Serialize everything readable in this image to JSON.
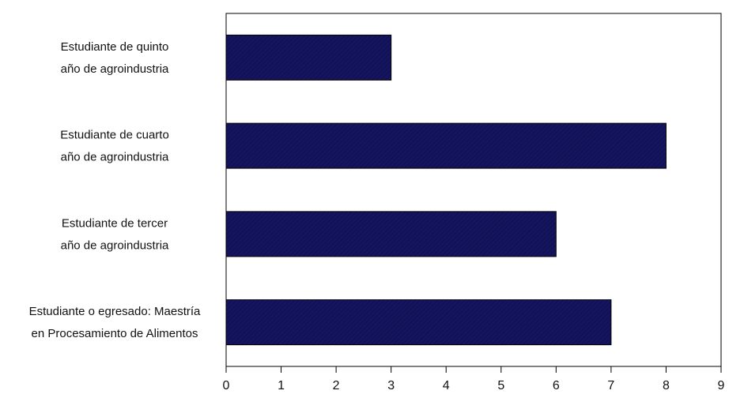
{
  "chart_data": {
    "type": "bar",
    "orientation": "horizontal",
    "categories": [
      [
        "Estudiante de quinto",
        "año de agroindustria"
      ],
      [
        "Estudiante de cuarto",
        "año de agroindustria"
      ],
      [
        "Estudiante de tercer",
        "año de agroindustria"
      ],
      [
        "Estudiante o egresado: Maestría",
        "en Procesamiento de Alimentos"
      ]
    ],
    "values": [
      3,
      8,
      6,
      7
    ],
    "xlim": [
      0,
      9
    ],
    "xticks": [
      "0",
      "1",
      "2",
      "3",
      "4",
      "5",
      "6",
      "7",
      "8",
      "9"
    ],
    "bar_color": "#15155f",
    "grid": false,
    "legend": "none"
  }
}
